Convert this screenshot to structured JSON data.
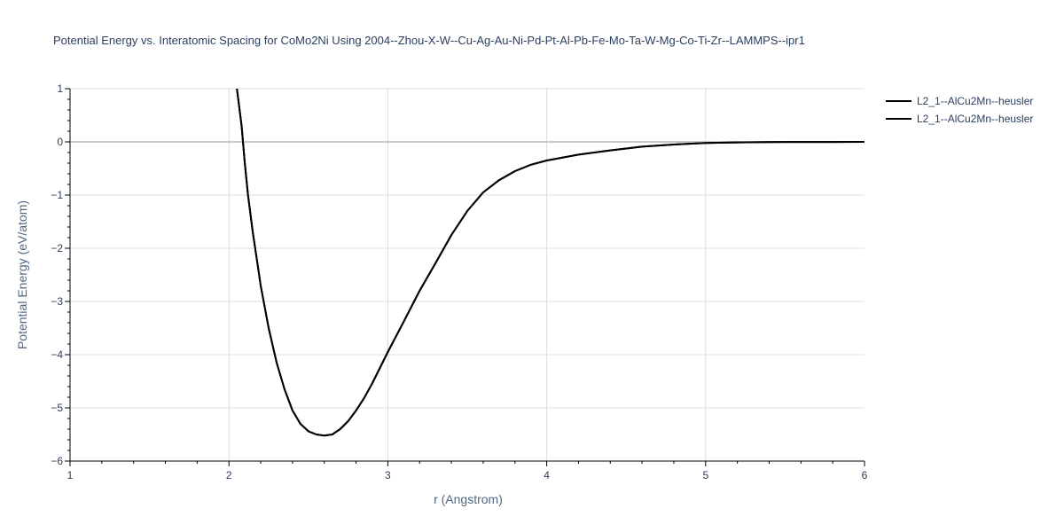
{
  "chart_data": {
    "type": "line",
    "title": "Potential Energy vs. Interatomic Spacing for CoMo2Ni Using 2004--Zhou-X-W--Cu-Ag-Au-Ni-Pd-Pt-Al-Pb-Fe-Mo-Ta-W-Mg-Co-Ti-Zr--LAMMPS--ipr1",
    "xlabel": "r (Angstrom)",
    "ylabel": "Potential Energy (eV/atom)",
    "xlim": [
      1,
      6
    ],
    "ylim": [
      -6,
      1
    ],
    "x_ticks": [
      1,
      2,
      3,
      4,
      5,
      6
    ],
    "y_ticks": [
      1,
      0,
      -1,
      -2,
      -3,
      -4,
      -5,
      -6
    ],
    "x_tick_labels": [
      "1",
      "2",
      "3",
      "4",
      "5",
      "6"
    ],
    "y_tick_labels": [
      "1",
      "0",
      "−1",
      "−2",
      "−3",
      "−4",
      "−5",
      "−6"
    ],
    "grid": true,
    "legend_position": "top-right",
    "series": [
      {
        "name": "L2_1--AlCu2Mn--heusler",
        "color": "#000000",
        "x": [
          2.05,
          2.08,
          2.1,
          2.12,
          2.15,
          2.18,
          2.2,
          2.25,
          2.3,
          2.35,
          2.4,
          2.45,
          2.5,
          2.55,
          2.6,
          2.65,
          2.7,
          2.75,
          2.8,
          2.85,
          2.9,
          3.0,
          3.1,
          3.2,
          3.3,
          3.4,
          3.5,
          3.6,
          3.7,
          3.8,
          3.9,
          4.0,
          4.2,
          4.4,
          4.6,
          4.8,
          5.0,
          5.2,
          5.4,
          5.6,
          5.8,
          6.0
        ],
        "y": [
          1.0,
          0.3,
          -0.4,
          -1.0,
          -1.7,
          -2.3,
          -2.7,
          -3.5,
          -4.15,
          -4.65,
          -5.05,
          -5.3,
          -5.44,
          -5.5,
          -5.52,
          -5.5,
          -5.4,
          -5.25,
          -5.05,
          -4.82,
          -4.55,
          -3.95,
          -3.38,
          -2.8,
          -2.28,
          -1.75,
          -1.3,
          -0.95,
          -0.72,
          -0.55,
          -0.43,
          -0.35,
          -0.24,
          -0.16,
          -0.09,
          -0.05,
          -0.02,
          -0.01,
          -0.005,
          -0.002,
          -0.001,
          0.0
        ]
      },
      {
        "name": "L2_1--AlCu2Mn--heusler",
        "color": "#000000",
        "x": [
          2.05,
          2.08,
          2.1,
          2.12,
          2.15,
          2.18,
          2.2,
          2.25,
          2.3,
          2.35,
          2.4,
          2.45,
          2.5,
          2.55,
          2.6,
          2.65,
          2.7,
          2.75,
          2.8,
          2.85,
          2.9,
          3.0,
          3.1,
          3.2,
          3.3,
          3.4,
          3.5,
          3.6,
          3.7,
          3.8,
          3.9,
          4.0,
          4.2,
          4.4,
          4.6,
          4.8,
          5.0,
          5.2,
          5.4,
          5.6,
          5.8,
          6.0
        ],
        "y": [
          1.0,
          0.3,
          -0.4,
          -1.0,
          -1.7,
          -2.3,
          -2.7,
          -3.5,
          -4.15,
          -4.65,
          -5.05,
          -5.3,
          -5.44,
          -5.5,
          -5.52,
          -5.5,
          -5.4,
          -5.25,
          -5.05,
          -4.82,
          -4.55,
          -3.95,
          -3.38,
          -2.8,
          -2.28,
          -1.75,
          -1.3,
          -0.95,
          -0.72,
          -0.55,
          -0.43,
          -0.35,
          -0.24,
          -0.16,
          -0.09,
          -0.05,
          -0.02,
          -0.01,
          -0.005,
          -0.002,
          -0.001,
          0.0
        ]
      }
    ]
  }
}
